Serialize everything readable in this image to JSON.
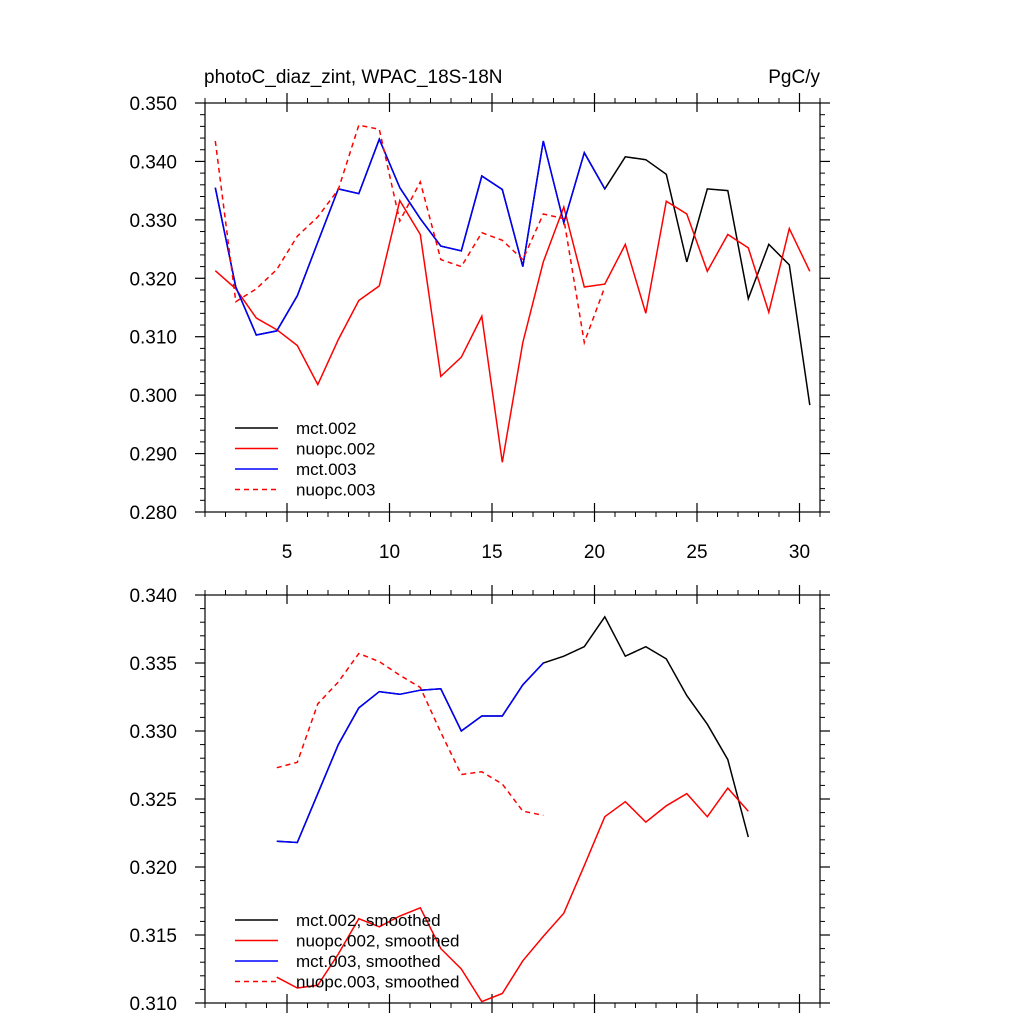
{
  "chart_data": [
    {
      "type": "line",
      "title_left": "photoC_diaz_zint, WPAC_18S-18N",
      "title_right": "PgC/y",
      "xlim": [
        1,
        31
      ],
      "ylim": [
        0.28,
        0.35
      ],
      "xticks": [
        5,
        10,
        15,
        20,
        25,
        30
      ],
      "xtick_labels": [
        "5",
        "10",
        "15",
        "20",
        "25",
        "30"
      ],
      "yticks": [
        0.28,
        0.29,
        0.3,
        0.31,
        0.32,
        0.33,
        0.34,
        0.35
      ],
      "ytick_labels": [
        "0.280",
        "0.290",
        "0.300",
        "0.310",
        "0.320",
        "0.330",
        "0.340",
        "0.350"
      ],
      "legend_position": "bottom-left",
      "series": [
        {
          "name": "mct.002",
          "color": "#000000",
          "dash": "solid",
          "x": [
            1.5,
            2.5,
            3.5,
            4.5,
            5.5,
            6.5,
            7.5,
            8.5,
            9.5,
            10.5,
            11.5,
            12.5,
            13.5,
            14.5,
            15.5,
            16.5,
            17.5,
            18.5,
            19.5,
            20.5,
            21.5,
            22.5,
            23.5,
            24.5,
            25.5,
            26.5,
            27.5,
            28.5,
            29.5,
            30.5
          ],
          "y": [
            0.3355,
            0.3185,
            0.3103,
            0.311,
            0.317,
            0.3262,
            0.3353,
            0.3345,
            0.3438,
            0.3355,
            0.3302,
            0.3255,
            0.3247,
            0.3375,
            0.3352,
            0.322,
            0.3435,
            0.3295,
            0.3415,
            0.3353,
            0.3408,
            0.3403,
            0.3378,
            0.3228,
            0.3353,
            0.335,
            0.3165,
            0.3258,
            0.3223,
            0.2983
          ]
        },
        {
          "name": "nuopc.002",
          "color": "#ff0000",
          "dash": "solid",
          "x": [
            1.5,
            2.5,
            3.5,
            4.5,
            5.5,
            6.5,
            7.5,
            8.5,
            9.5,
            10.5,
            11.5,
            12.5,
            13.5,
            14.5,
            15.5,
            16.5,
            17.5,
            18.5,
            19.5,
            20.5,
            21.5,
            22.5,
            23.5,
            24.5,
            25.5,
            26.5,
            27.5,
            28.5,
            29.5,
            30.5
          ],
          "y": [
            0.3213,
            0.3182,
            0.3132,
            0.3112,
            0.3085,
            0.3018,
            0.3095,
            0.3162,
            0.3187,
            0.3333,
            0.3275,
            0.3032,
            0.3065,
            0.3135,
            0.2885,
            0.309,
            0.3228,
            0.3322,
            0.3185,
            0.319,
            0.3258,
            0.314,
            0.3332,
            0.331,
            0.3212,
            0.3275,
            0.3252,
            0.3142,
            0.3285,
            0.3212
          ]
        },
        {
          "name": "mct.003",
          "color": "#0000ff",
          "dash": "solid",
          "x": [
            1.5,
            2.5,
            3.5,
            4.5,
            5.5,
            6.5,
            7.5,
            8.5,
            9.5,
            10.5,
            11.5,
            12.5,
            13.5,
            14.5,
            15.5,
            16.5,
            17.5,
            18.5,
            19.5,
            20.5
          ],
          "y": [
            0.3355,
            0.3185,
            0.3103,
            0.311,
            0.317,
            0.3262,
            0.3353,
            0.3345,
            0.3438,
            0.3355,
            0.3302,
            0.3255,
            0.3247,
            0.3375,
            0.3352,
            0.322,
            0.3435,
            0.3295,
            0.3415,
            0.3353
          ]
        },
        {
          "name": "nuopc.003",
          "color": "#ff0000",
          "dash": "dashed",
          "x": [
            1.5,
            2.5,
            3.5,
            4.5,
            5.5,
            6.5,
            7.5,
            8.5,
            9.5,
            10.5,
            11.5,
            12.5,
            13.5,
            14.5,
            15.5,
            16.5,
            17.5,
            18.5,
            19.5,
            20.5
          ],
          "y": [
            0.3435,
            0.316,
            0.3182,
            0.3215,
            0.3272,
            0.3305,
            0.3352,
            0.3462,
            0.3455,
            0.3298,
            0.3365,
            0.3232,
            0.322,
            0.3278,
            0.3265,
            0.3232,
            0.331,
            0.3302,
            0.309,
            0.3185
          ]
        }
      ]
    },
    {
      "type": "line",
      "xlim": [
        1,
        31
      ],
      "ylim": [
        0.31,
        0.34
      ],
      "xticks": [
        5,
        10,
        15,
        20,
        25,
        30
      ],
      "yticks": [
        0.31,
        0.315,
        0.32,
        0.325,
        0.33,
        0.335,
        0.34
      ],
      "ytick_labels": [
        "0.310",
        "0.315",
        "0.320",
        "0.325",
        "0.330",
        "0.335",
        "0.340"
      ],
      "legend_position": "bottom-left",
      "series": [
        {
          "name": "mct.002, smoothed",
          "color": "#000000",
          "dash": "solid",
          "x": [
            4.5,
            5.5,
            6.5,
            7.5,
            8.5,
            9.5,
            10.5,
            11.5,
            12.5,
            13.5,
            14.5,
            15.5,
            16.5,
            17.5,
            18.5,
            19.5,
            20.5,
            21.5,
            22.5,
            23.5,
            24.5,
            25.5,
            26.5,
            27.5
          ],
          "y": [
            0.3219,
            0.3218,
            0.3254,
            0.329,
            0.3317,
            0.3329,
            0.3327,
            0.333,
            0.3331,
            0.33,
            0.3311,
            0.3311,
            0.3334,
            0.335,
            0.3355,
            0.3362,
            0.3384,
            0.3355,
            0.3362,
            0.3353,
            0.3326,
            0.3305,
            0.3279,
            0.3222
          ]
        },
        {
          "name": "nuopc.002, smoothed",
          "color": "#ff0000",
          "dash": "solid",
          "x": [
            4.5,
            5.5,
            6.5,
            7.5,
            8.5,
            9.5,
            10.5,
            11.5,
            12.5,
            13.5,
            14.5,
            15.5,
            16.5,
            17.5,
            18.5,
            19.5,
            20.5,
            21.5,
            22.5,
            23.5,
            24.5,
            25.5,
            26.5,
            27.5
          ],
          "y": [
            0.3119,
            0.3111,
            0.3113,
            0.3136,
            0.3162,
            0.3156,
            0.3164,
            0.317,
            0.314,
            0.3125,
            0.3101,
            0.3107,
            0.3131,
            0.3149,
            0.3166,
            0.3201,
            0.3237,
            0.3248,
            0.3233,
            0.3245,
            0.3254,
            0.3237,
            0.3258,
            0.3241
          ]
        },
        {
          "name": "mct.003, smoothed",
          "color": "#0000ff",
          "dash": "solid",
          "x": [
            4.5,
            5.5,
            6.5,
            7.5,
            8.5,
            9.5,
            10.5,
            11.5,
            12.5,
            13.5,
            14.5,
            15.5,
            16.5,
            17.5
          ],
          "y": [
            0.3219,
            0.3218,
            0.3254,
            0.329,
            0.3317,
            0.3329,
            0.3327,
            0.333,
            0.3331,
            0.33,
            0.3311,
            0.3311,
            0.3334,
            0.335
          ]
        },
        {
          "name": "nuopc.003, smoothed",
          "color": "#ff0000",
          "dash": "dashed",
          "x": [
            4.5,
            5.5,
            6.5,
            7.5,
            8.5,
            9.5,
            10.5,
            11.5,
            12.5,
            13.5,
            14.5,
            15.5,
            16.5,
            17.5
          ],
          "y": [
            0.3273,
            0.3277,
            0.332,
            0.3336,
            0.3357,
            0.3351,
            0.3341,
            0.3332,
            0.3299,
            0.3268,
            0.327,
            0.3261,
            0.3241,
            0.3238
          ]
        }
      ]
    }
  ]
}
